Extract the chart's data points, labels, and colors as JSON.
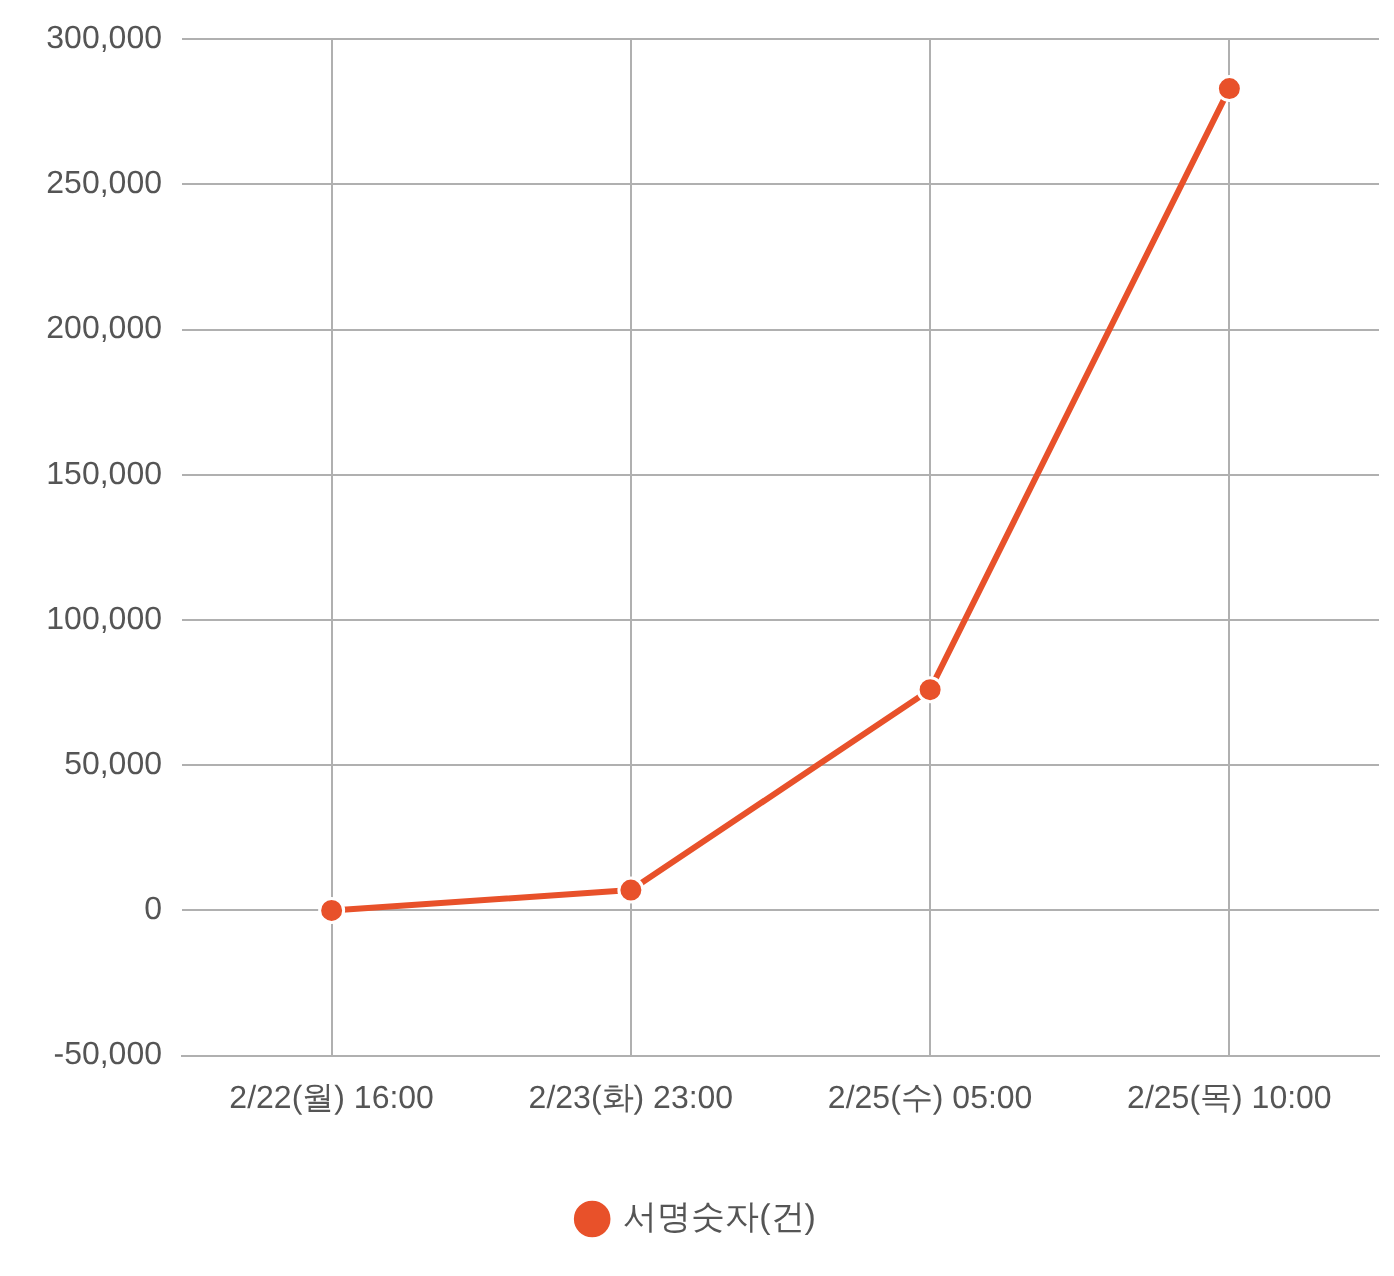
{
  "chart_data": {
    "type": "line",
    "categories": [
      "2/22(월) 16:00",
      "2/23(화) 23:00",
      "2/25(수) 05:00",
      "2/25(목) 10:00"
    ],
    "series": [
      {
        "name": "서명숫자(건)",
        "color": "#e8512a",
        "values": [
          0,
          7000,
          76000,
          283000
        ]
      }
    ],
    "ylim": [
      -50000,
      300000
    ],
    "yticks": [
      {
        "value": -50000,
        "label": "-50,000"
      },
      {
        "value": 0,
        "label": "0"
      },
      {
        "value": 50000,
        "label": "50,000"
      },
      {
        "value": 100000,
        "label": "100,000"
      },
      {
        "value": 150000,
        "label": "150,000"
      },
      {
        "value": 200000,
        "label": "200,000"
      },
      {
        "value": 250000,
        "label": "250,000"
      },
      {
        "value": 300000,
        "label": "300,000"
      }
    ],
    "grid": true,
    "legend": "bottom",
    "marker": "circle",
    "line_style": "solid"
  }
}
